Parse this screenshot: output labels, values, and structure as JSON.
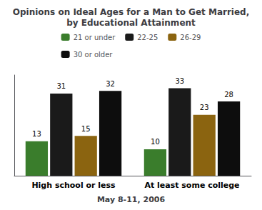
{
  "chart_data": {
    "type": "bar",
    "title": "Opinions on Ideal Ages for a Man to Get Married,\nby Educational Attainment",
    "categories": [
      "High school or less",
      "At least some college"
    ],
    "series": [
      {
        "name": "21 or under",
        "color": "#3a7d2c",
        "values": [
          13,
          10
        ]
      },
      {
        "name": "22-25",
        "color": "#1a1a1a",
        "values": [
          31,
          33
        ]
      },
      {
        "name": "26-29",
        "color": "#8B6410",
        "values": [
          15,
          23
        ]
      },
      {
        "name": "30 or older",
        "color": "#0d0d0d",
        "values": [
          32,
          28
        ]
      }
    ],
    "annotations": [
      "May 8-11, 2006"
    ],
    "ylim": [
      0,
      38
    ],
    "tick_labels": "x",
    "data_labels": true,
    "grid": false,
    "legend": "top"
  }
}
